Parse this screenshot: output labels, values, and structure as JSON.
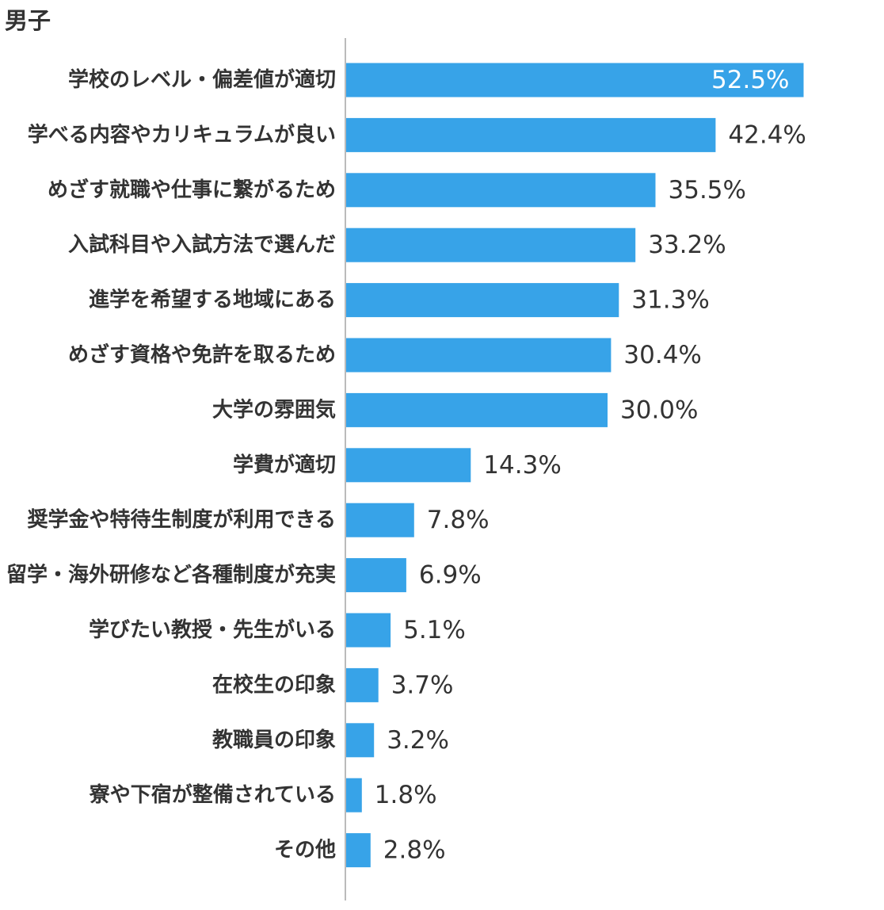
{
  "title": "男子",
  "chart_data": {
    "type": "bar",
    "orientation": "horizontal",
    "title": "男子",
    "categories": [
      "学校のレベル・偏差値が適切",
      "学べる内容やカリキュラムが良い",
      "めざす就職や仕事に繋がるため",
      "入試科目や入試方法で選んだ",
      "進学を希望する地域にある",
      "めざす資格や免許を取るため",
      "大学の雰囲気",
      "学費が適切",
      "奨学金や特待生制度が利用できる",
      "留学・海外研修など各種制度が充実",
      "学びたい教授・先生がいる",
      "在校生の印象",
      "教職員の印象",
      "寮や下宿が整備されている",
      "その他"
    ],
    "values": [
      52.5,
      42.4,
      35.5,
      33.2,
      31.3,
      30.4,
      30.0,
      14.3,
      7.8,
      6.9,
      5.1,
      3.7,
      3.2,
      1.8,
      2.8
    ],
    "value_labels": [
      "52.5%",
      "42.4%",
      "35.5%",
      "33.2%",
      "31.3%",
      "30.4%",
      "30.0%",
      "14.3%",
      "7.8%",
      "6.9%",
      "5.1%",
      "3.7%",
      "3.2%",
      "1.8%",
      "2.8%"
    ],
    "bar_color": "#37a3e8",
    "axis_color": "#bbbbbb",
    "grid": false,
    "legend": "none"
  }
}
